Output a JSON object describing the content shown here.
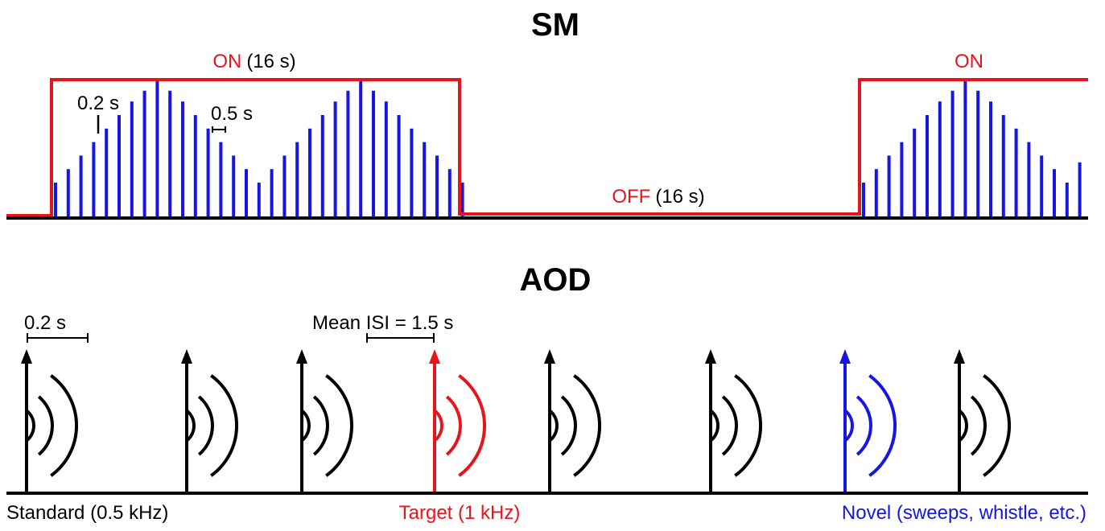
{
  "colors": {
    "black": "#000000",
    "red": "#e8141c",
    "blue": "#1515e6"
  },
  "sm": {
    "title": "SM",
    "on_word": "ON",
    "on_duration": "(16 s)",
    "off_word": "OFF",
    "off_duration": "(16 s)",
    "on_word_2": "ON",
    "pulse_width_label": "0.2 s",
    "pulse_interval_label": "0.5 s",
    "block_pulse_levels": [
      0.25,
      0.35,
      0.45,
      0.55,
      0.65,
      0.75,
      0.85,
      0.93,
      1.0,
      0.93,
      0.85,
      0.75,
      0.65,
      0.55,
      0.45,
      0.35,
      0.25,
      0.35,
      0.45,
      0.55,
      0.65,
      0.75,
      0.85,
      0.93,
      1.0,
      0.93,
      0.85,
      0.75,
      0.65,
      0.55,
      0.45,
      0.35,
      0.25
    ],
    "partial_block_pulse_levels": [
      0.25,
      0.35,
      0.45,
      0.55,
      0.65,
      0.75,
      0.85,
      0.93,
      1.0,
      0.93,
      0.85,
      0.75,
      0.65,
      0.55,
      0.45,
      0.35,
      0.25,
      0.4
    ]
  },
  "aod": {
    "title": "AOD",
    "width_label": "0.2 s",
    "isi_label": "Mean ISI = 1.5 s",
    "labels": {
      "standard": "Standard (0.5 kHz)",
      "target": "Target (1 kHz)",
      "novel": "Novel (sweeps, whistle, etc.)"
    },
    "stimulus_sequence": [
      "standard",
      "standard",
      "standard",
      "target",
      "standard",
      "standard",
      "novel",
      "standard"
    ]
  }
}
